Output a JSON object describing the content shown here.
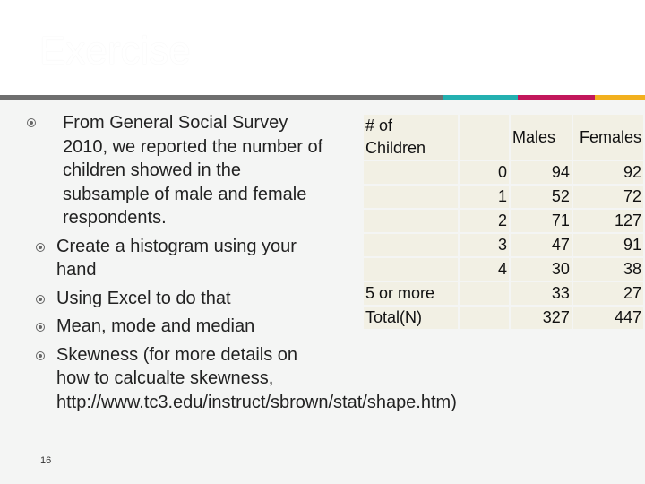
{
  "slide": {
    "title": "Exercise",
    "slide_number": "16"
  },
  "bullet": {
    "text": "From General Social Survey 2010, we reported the number of children showed in the subsample of male and female respondents.",
    "subs": [
      "Create a histogram using your hand",
      "Using Excel to do that",
      "Mean, mode and median",
      "Skewness (for more details on how to calcualte skewness, http://www.tc3.edu/instruct/sbrown/stat/shape.htm)"
    ]
  },
  "table": {
    "headers": [
      "# of Children",
      "Males",
      "Females"
    ],
    "rows": [
      {
        "label": "",
        "children": "0",
        "males": "94",
        "females": "92"
      },
      {
        "label": "",
        "children": "1",
        "males": "52",
        "females": "72"
      },
      {
        "label": "",
        "children": "2",
        "males": "71",
        "females": "127"
      },
      {
        "label": "",
        "children": "3",
        "males": "47",
        "females": "91"
      },
      {
        "label": "",
        "children": "4",
        "males": "30",
        "females": "38"
      },
      {
        "label": "5 or more",
        "children": "",
        "males": "33",
        "females": "27"
      },
      {
        "label": "Total(N)",
        "children": "",
        "males": "327",
        "females": "447"
      }
    ]
  },
  "colors": {
    "stripe_gray": "#6f6f6f",
    "stripe_teal": "#23b0b0",
    "stripe_magenta": "#c2175b",
    "stripe_gold": "#f2b01e"
  }
}
